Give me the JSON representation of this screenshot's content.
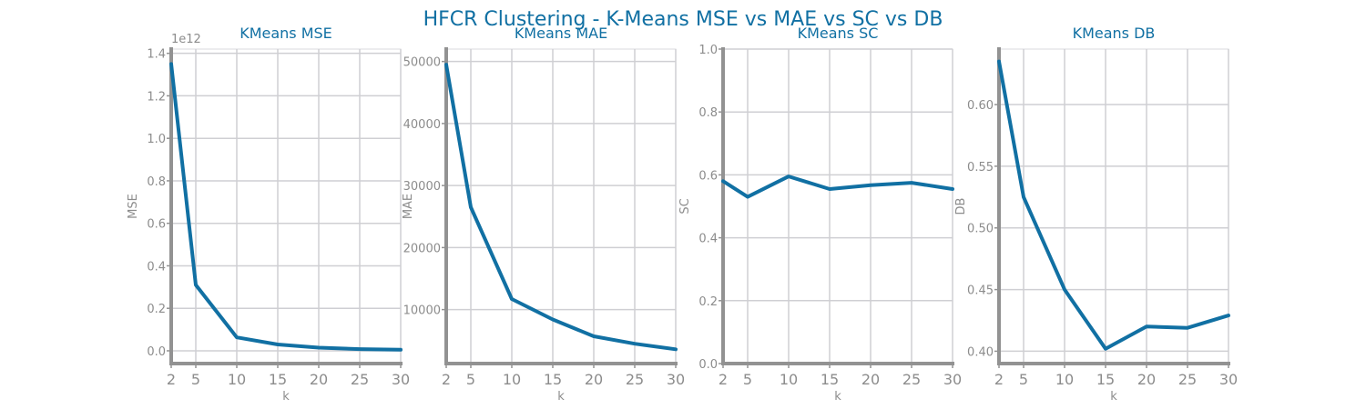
{
  "figure": {
    "suptitle": "HFCR Clustering - K-Means MSE vs MAE vs SC vs DB"
  },
  "colors": {
    "line": "#1170a3",
    "title": "#1170a3",
    "axis": "#929292",
    "grid": "#cfcfd3",
    "tick_text": "#8c8c8c"
  },
  "chart_data": [
    {
      "type": "line",
      "title": "KMeans MSE",
      "xlabel": "k",
      "ylabel": "MSE",
      "offset_text": "1e12",
      "x": [
        2,
        5,
        10,
        15,
        20,
        25,
        30
      ],
      "xticks": [
        2,
        5,
        10,
        15,
        20,
        25,
        30
      ],
      "xtick_labels": [
        "2",
        "5",
        "10",
        "15",
        "20",
        "25",
        "30"
      ],
      "series": [
        {
          "values": [
            1.35,
            0.31,
            0.063,
            0.03,
            0.015,
            0.008,
            0.005
          ]
        }
      ],
      "xlim": [
        2,
        30
      ],
      "ylim": [
        -0.06,
        1.42
      ],
      "yticks": [
        0.0,
        0.2,
        0.4,
        0.6,
        0.8,
        1.0,
        1.2,
        1.4
      ],
      "ytick_labels": [
        "0.0",
        "0.2",
        "0.4",
        "0.6",
        "0.8",
        "1.0",
        "1.2",
        "1.4"
      ],
      "grid": true
    },
    {
      "type": "line",
      "title": "KMeans MAE",
      "xlabel": "k",
      "ylabel": "MAE",
      "x": [
        2,
        5,
        10,
        15,
        20,
        25,
        30
      ],
      "xticks": [
        2,
        5,
        10,
        15,
        20,
        25,
        30
      ],
      "xtick_labels": [
        "2",
        "5",
        "10",
        "15",
        "20",
        "25",
        "30"
      ],
      "series": [
        {
          "values": [
            49500,
            26500,
            11700,
            8400,
            5700,
            4500,
            3600
          ]
        }
      ],
      "xlim": [
        2,
        30
      ],
      "ylim": [
        1300,
        52000
      ],
      "yticks": [
        10000,
        20000,
        30000,
        40000,
        50000
      ],
      "ytick_labels": [
        "10000",
        "20000",
        "30000",
        "40000",
        "50000"
      ],
      "grid": true
    },
    {
      "type": "line",
      "title": "KMeans SC",
      "xlabel": "k",
      "ylabel": "SC",
      "x": [
        2,
        5,
        10,
        15,
        20,
        25,
        30
      ],
      "xticks": [
        2,
        5,
        10,
        15,
        20,
        25,
        30
      ],
      "xtick_labels": [
        "2",
        "5",
        "10",
        "15",
        "20",
        "25",
        "30"
      ],
      "series": [
        {
          "values": [
            0.58,
            0.53,
            0.595,
            0.555,
            0.567,
            0.575,
            0.555
          ]
        }
      ],
      "xlim": [
        2,
        30
      ],
      "ylim": [
        0.0,
        1.0
      ],
      "yticks": [
        0.0,
        0.2,
        0.4,
        0.6,
        0.8,
        1.0
      ],
      "ytick_labels": [
        "0.0",
        "0.2",
        "0.4",
        "0.6",
        "0.8",
        "1.0"
      ],
      "grid": true
    },
    {
      "type": "line",
      "title": "KMeans DB",
      "xlabel": "k",
      "ylabel": "DB",
      "x": [
        2,
        5,
        10,
        15,
        20,
        25,
        30
      ],
      "xticks": [
        2,
        5,
        10,
        15,
        20,
        25,
        30
      ],
      "xtick_labels": [
        "2",
        "5",
        "10",
        "15",
        "20",
        "25",
        "30"
      ],
      "series": [
        {
          "values": [
            0.635,
            0.525,
            0.45,
            0.402,
            0.42,
            0.419,
            0.429
          ]
        }
      ],
      "xlim": [
        2,
        30
      ],
      "ylim": [
        0.39,
        0.645
      ],
      "yticks": [
        0.4,
        0.45,
        0.5,
        0.55,
        0.6
      ],
      "ytick_labels": [
        "0.40",
        "0.45",
        "0.50",
        "0.55",
        "0.60"
      ],
      "grid": true
    }
  ]
}
